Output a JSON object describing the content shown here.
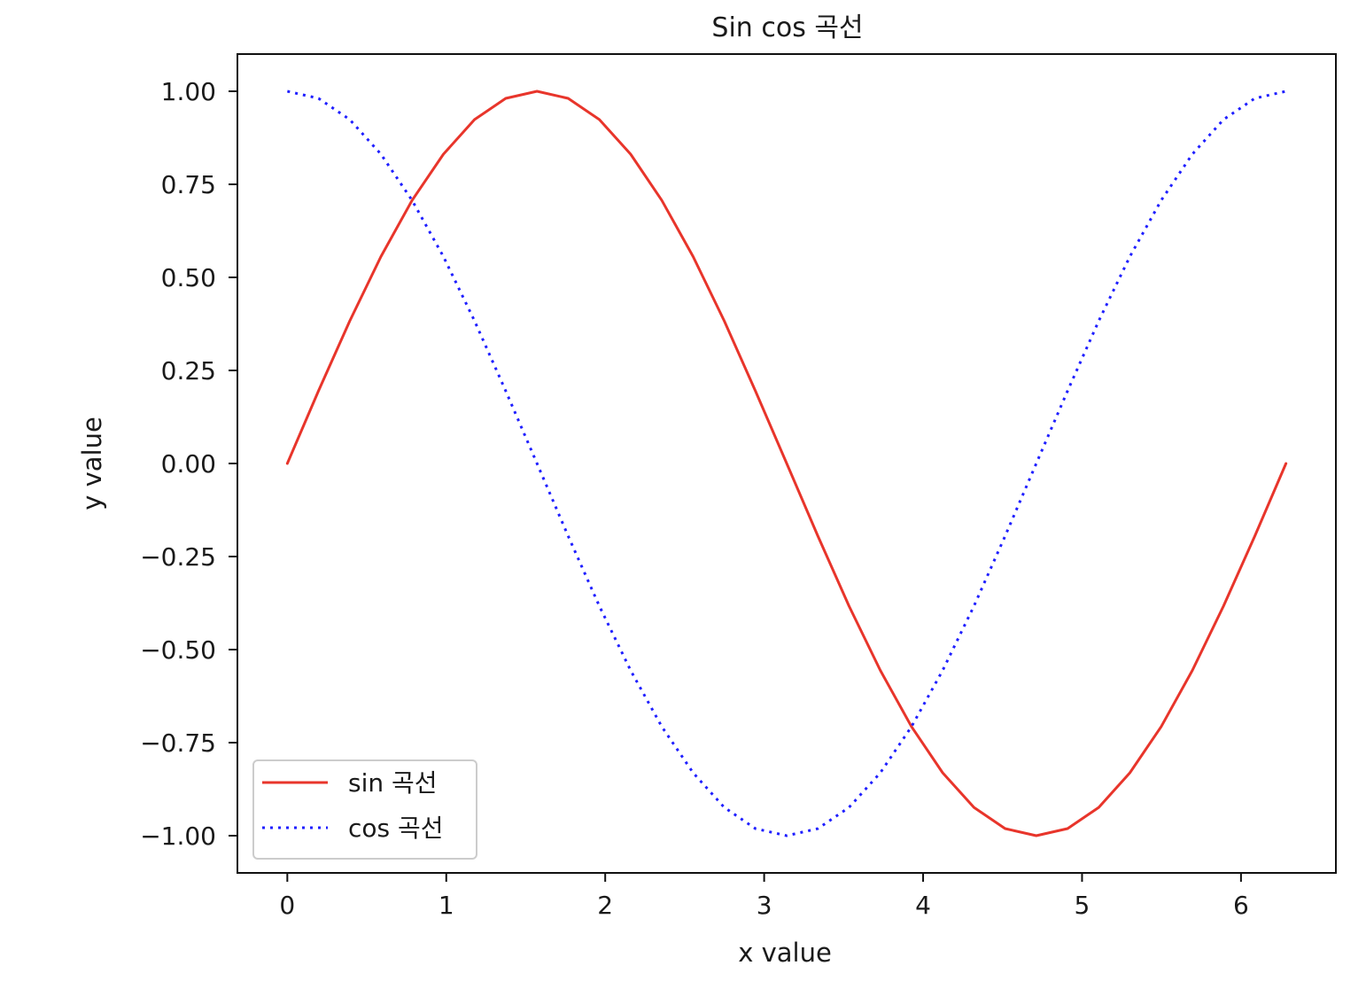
{
  "chart_data": {
    "type": "line",
    "title": "Sin cos 곡선",
    "xlabel": "x value",
    "ylabel": "y value",
    "xlim": [
      -0.314,
      6.597
    ],
    "ylim": [
      -1.1,
      1.1
    ],
    "x_ticks": [
      0,
      1,
      2,
      3,
      4,
      5,
      6
    ],
    "x_tick_labels": [
      "0",
      "1",
      "2",
      "3",
      "4",
      "5",
      "6"
    ],
    "y_ticks": [
      1.0,
      0.75,
      0.5,
      0.25,
      0.0,
      -0.25,
      -0.5,
      -0.75,
      -1.0
    ],
    "y_tick_labels": [
      "1.00",
      "0.75",
      "0.50",
      "0.25",
      "0.00",
      "−0.25",
      "−0.50",
      "−0.75",
      "−1.00"
    ],
    "grid": false,
    "legend_position": "lower-left",
    "series": [
      {
        "name": "sin 곡선",
        "color": "#e8352b",
        "line_style": "solid",
        "x": [
          0.0,
          0.196,
          0.393,
          0.589,
          0.785,
          0.982,
          1.178,
          1.374,
          1.571,
          1.767,
          1.963,
          2.16,
          2.356,
          2.553,
          2.749,
          2.945,
          3.142,
          3.338,
          3.534,
          3.731,
          3.927,
          4.123,
          4.32,
          4.516,
          4.712,
          4.909,
          5.105,
          5.301,
          5.498,
          5.694,
          5.89,
          6.087,
          6.283
        ],
        "y": [
          0.0,
          0.195,
          0.383,
          0.556,
          0.707,
          0.831,
          0.924,
          0.981,
          1.0,
          0.981,
          0.924,
          0.831,
          0.707,
          0.556,
          0.383,
          0.195,
          0.0,
          -0.195,
          -0.383,
          -0.556,
          -0.707,
          -0.831,
          -0.924,
          -0.981,
          -1.0,
          -0.981,
          -0.924,
          -0.831,
          -0.707,
          -0.556,
          -0.383,
          -0.195,
          0.0
        ]
      },
      {
        "name": "cos 곡선",
        "color": "#1f1fff",
        "line_style": "dotted",
        "x": [
          0.0,
          0.196,
          0.393,
          0.589,
          0.785,
          0.982,
          1.178,
          1.374,
          1.571,
          1.767,
          1.963,
          2.16,
          2.356,
          2.553,
          2.749,
          2.945,
          3.142,
          3.338,
          3.534,
          3.731,
          3.927,
          4.123,
          4.32,
          4.516,
          4.712,
          4.909,
          5.105,
          5.301,
          5.498,
          5.694,
          5.89,
          6.087,
          6.283
        ],
        "y": [
          1.0,
          0.981,
          0.924,
          0.831,
          0.707,
          0.556,
          0.383,
          0.195,
          0.0,
          -0.195,
          -0.383,
          -0.556,
          -0.707,
          -0.831,
          -0.924,
          -0.981,
          -1.0,
          -0.981,
          -0.924,
          -0.831,
          -0.707,
          -0.556,
          -0.383,
          -0.195,
          0.0,
          0.195,
          0.383,
          0.556,
          0.707,
          0.831,
          0.924,
          0.981,
          1.0
        ]
      }
    ]
  }
}
